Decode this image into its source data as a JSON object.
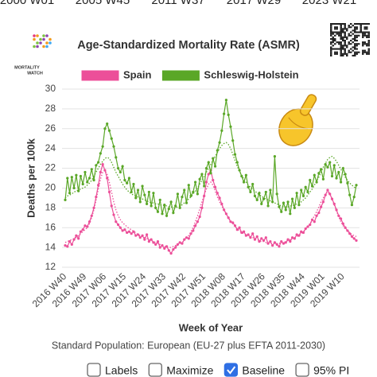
{
  "slider_labels": [
    "2000 W01",
    "2005 W45",
    "2011 W37",
    "2017 W29",
    "2023 W21"
  ],
  "logo": {
    "line1": "MORTALITY",
    "line2": "WATCH"
  },
  "chart_data": {
    "type": "line",
    "title": "Age-Standardized Mortality Rate (ASMR)",
    "ylabel": "Deaths per 100k",
    "xlabel": "Week of Year",
    "caption": "Standard Population: European (EU-27 plus EFTA 2011-2030)",
    "legend": "top",
    "grid": true,
    "ylim": [
      12,
      30
    ],
    "yticks": [
      12,
      14,
      16,
      18,
      20,
      22,
      24,
      26,
      28,
      30
    ],
    "categories": [
      "2016 W40",
      null,
      null,
      null,
      null,
      null,
      null,
      null,
      null,
      "2016 W49",
      null,
      null,
      null,
      null,
      null,
      null,
      null,
      null,
      "2017 W06",
      null,
      null,
      null,
      null,
      null,
      null,
      null,
      null,
      "2017 W15",
      null,
      null,
      null,
      null,
      null,
      null,
      null,
      null,
      "2017 W24",
      null,
      null,
      null,
      null,
      null,
      null,
      null,
      null,
      "2017 W33",
      null,
      null,
      null,
      null,
      null,
      null,
      null,
      null,
      "2017 W42",
      null,
      null,
      null,
      null,
      null,
      null,
      null,
      null,
      "2017 W51",
      null,
      null,
      null,
      null,
      null,
      null,
      null,
      null,
      "2018 W08",
      null,
      null,
      null,
      null,
      null,
      null,
      null,
      null,
      "2018 W17",
      null,
      null,
      null,
      null,
      null,
      null,
      null,
      null,
      "2018 W26",
      null,
      null,
      null,
      null,
      null,
      null,
      null,
      null,
      "2018 W35",
      null,
      null,
      null,
      null,
      null,
      null,
      null,
      null,
      "2018 W44",
      null,
      null,
      null,
      null,
      null,
      null,
      null,
      null,
      "2019 W01",
      null,
      null,
      null,
      null,
      null,
      null,
      null,
      null,
      "2019 W10",
      null,
      null,
      null,
      null,
      null,
      null
    ],
    "series": [
      {
        "name": "Spain",
        "color": "#ec4f99",
        "values": [
          14.2,
          14.1,
          14.6,
          14.3,
          14.8,
          15.2,
          14.9,
          15.6,
          15.8,
          16.2,
          16.1,
          16.6,
          17.2,
          18.0,
          19.1,
          20.3,
          21.6,
          22.4,
          21.8,
          21.0,
          19.6,
          18.2,
          17.3,
          16.6,
          16.3,
          16.0,
          15.7,
          15.8,
          15.5,
          15.6,
          15.4,
          15.6,
          15.2,
          15.3,
          15.0,
          15.2,
          14.8,
          15.3,
          14.6,
          14.8,
          14.5,
          14.3,
          14.6,
          14.0,
          14.2,
          13.9,
          14.1,
          13.7,
          13.4,
          13.8,
          14.0,
          14.3,
          14.5,
          14.4,
          14.8,
          15.0,
          14.9,
          15.4,
          15.7,
          16.2,
          16.6,
          17.1,
          18.0,
          19.2,
          20.6,
          21.4,
          21.8,
          20.8,
          20.1,
          19.5,
          19.0,
          18.4,
          17.8,
          17.4,
          17.0,
          16.6,
          16.5,
          16.2,
          15.8,
          16.0,
          15.5,
          15.6,
          15.2,
          15.3,
          15.0,
          15.4,
          14.8,
          15.1,
          14.6,
          14.9,
          14.7,
          15.0,
          14.4,
          14.6,
          14.2,
          14.5,
          14.3,
          14.1,
          14.6,
          14.4,
          14.5,
          14.8,
          14.6,
          15.0,
          14.9,
          15.3,
          15.2,
          15.6,
          15.5,
          15.9,
          16.1,
          16.3,
          16.8,
          16.6,
          17.2,
          17.5,
          18.1,
          18.6,
          19.3,
          19.8,
          19.4,
          18.9,
          18.4,
          17.8,
          17.2,
          16.9,
          16.4,
          16.0,
          15.7,
          15.4,
          15.1,
          14.9,
          14.7
        ],
        "baseline": [
          14.5,
          14.6,
          14.7,
          14.8,
          14.9,
          15.0,
          15.2,
          15.4,
          15.6,
          15.8,
          16.0,
          16.4,
          17.0,
          17.8,
          18.8,
          19.9,
          20.9,
          21.6,
          21.8,
          21.4,
          20.6,
          19.6,
          18.6,
          17.8,
          17.2,
          16.8,
          16.5,
          16.3,
          16.1,
          15.9,
          15.8,
          15.6,
          15.5,
          15.3,
          15.2,
          15.1,
          15.0,
          14.9,
          14.8,
          14.7,
          14.6,
          14.5,
          14.4,
          14.3,
          14.2,
          14.1,
          14.0,
          14.0,
          14.0,
          14.1,
          14.2,
          14.3,
          14.4,
          14.5,
          14.7,
          14.9,
          15.2,
          15.6,
          16.0,
          16.6,
          17.2,
          17.9,
          18.6,
          19.3,
          19.9,
          20.4,
          20.6,
          20.3,
          19.7,
          19.1,
          18.6,
          18.2,
          17.8,
          17.4,
          17.0,
          16.7,
          16.4,
          16.1,
          15.9,
          15.7,
          15.5,
          15.4,
          15.3,
          15.2,
          15.1,
          15.0,
          14.9,
          14.8,
          14.7,
          14.6,
          14.6,
          14.5,
          14.5,
          14.4,
          14.4,
          14.4,
          14.4,
          14.4,
          14.5,
          14.5,
          14.6,
          14.7,
          14.8,
          14.9,
          15.0,
          15.1,
          15.2,
          15.4,
          15.6,
          15.8,
          16.1,
          16.4,
          16.8,
          17.2,
          17.6,
          18.1,
          18.6,
          19.0,
          19.4,
          19.6,
          19.4,
          18.9,
          18.3,
          17.7,
          17.1,
          16.6,
          16.2,
          15.9,
          15.7,
          15.5,
          15.3,
          15.2,
          15.1
        ]
      },
      {
        "name": "Schleswig-Holstein",
        "color": "#5aa727",
        "values": [
          18.8,
          21.0,
          19.5,
          21.1,
          20.0,
          21.3,
          19.7,
          21.2,
          20.4,
          21.6,
          20.6,
          21.0,
          21.9,
          20.8,
          22.3,
          22.6,
          23.5,
          24.2,
          26.0,
          26.5,
          25.8,
          25.0,
          24.2,
          23.1,
          22.0,
          21.6,
          22.2,
          20.8,
          20.5,
          21.0,
          19.6,
          20.4,
          19.0,
          19.8,
          18.6,
          20.2,
          19.3,
          18.4,
          19.6,
          18.2,
          19.5,
          18.0,
          17.6,
          18.8,
          17.4,
          18.3,
          17.2,
          17.9,
          18.6,
          17.5,
          18.2,
          19.4,
          18.0,
          19.1,
          19.8,
          18.5,
          20.3,
          19.2,
          19.6,
          20.6,
          19.4,
          20.9,
          21.4,
          20.2,
          22.0,
          22.6,
          21.5,
          23.0,
          22.2,
          23.8,
          24.6,
          25.8,
          27.5,
          28.9,
          27.4,
          26.2,
          24.8,
          23.4,
          22.6,
          21.8,
          21.2,
          20.6,
          21.3,
          20.1,
          19.6,
          20.4,
          19.2,
          18.8,
          19.5,
          18.4,
          18.9,
          19.6,
          18.2,
          19.8,
          18.6,
          23.2,
          19.4,
          18.1,
          17.6,
          18.5,
          17.8,
          18.6,
          17.4,
          18.9,
          18.0,
          19.5,
          18.3,
          19.8,
          19.2,
          20.1,
          19.6,
          20.8,
          20.2,
          21.3,
          20.6,
          21.5,
          21.9,
          20.9,
          22.4,
          22.1,
          22.6,
          21.2,
          22.3,
          21.0,
          21.6,
          20.6,
          22.0,
          21.4,
          20.5,
          19.3,
          18.3,
          19.1,
          20.3
        ],
        "baseline": [
          19.0,
          19.2,
          19.3,
          19.4,
          19.6,
          19.7,
          19.8,
          19.9,
          20.0,
          20.1,
          20.3,
          20.5,
          20.8,
          21.2,
          21.6,
          22.0,
          22.4,
          22.7,
          23.0,
          23.1,
          23.0,
          22.6,
          22.1,
          21.6,
          21.2,
          20.8,
          20.4,
          20.1,
          19.8,
          19.6,
          19.4,
          19.3,
          19.2,
          19.1,
          19.0,
          18.9,
          18.8,
          18.7,
          18.6,
          18.5,
          18.5,
          18.4,
          18.4,
          18.3,
          18.3,
          18.2,
          18.2,
          18.1,
          18.1,
          18.0,
          18.0,
          18.1,
          18.2,
          18.3,
          18.5,
          18.7,
          18.9,
          19.1,
          19.4,
          19.7,
          20.0,
          20.4,
          20.8,
          21.2,
          21.6,
          22.0,
          22.4,
          22.8,
          23.2,
          23.6,
          24.0,
          24.3,
          24.5,
          24.6,
          24.4,
          24.0,
          23.4,
          22.8,
          22.2,
          21.7,
          21.3,
          20.9,
          20.6,
          20.3,
          20.1,
          19.9,
          19.7,
          19.5,
          19.3,
          19.2,
          19.0,
          18.9,
          18.8,
          18.7,
          18.6,
          18.5,
          18.4,
          18.3,
          18.2,
          18.1,
          18.1,
          18.1,
          18.2,
          18.2,
          18.3,
          18.4,
          18.5,
          18.6,
          18.8,
          19.0,
          19.3,
          19.6,
          19.9,
          20.3,
          20.7,
          21.1,
          21.6,
          22.1,
          22.5,
          22.9,
          23.1,
          23.2,
          23.0,
          22.7,
          22.3,
          21.9,
          21.5,
          21.1,
          20.8,
          20.5,
          20.3,
          20.1,
          20.0
        ]
      }
    ]
  },
  "controls": [
    {
      "label": "Labels",
      "checked": false
    },
    {
      "label": "Maximize",
      "checked": false
    },
    {
      "label": "Baseline",
      "checked": true
    },
    {
      "label": "95% PI",
      "checked": false
    }
  ]
}
